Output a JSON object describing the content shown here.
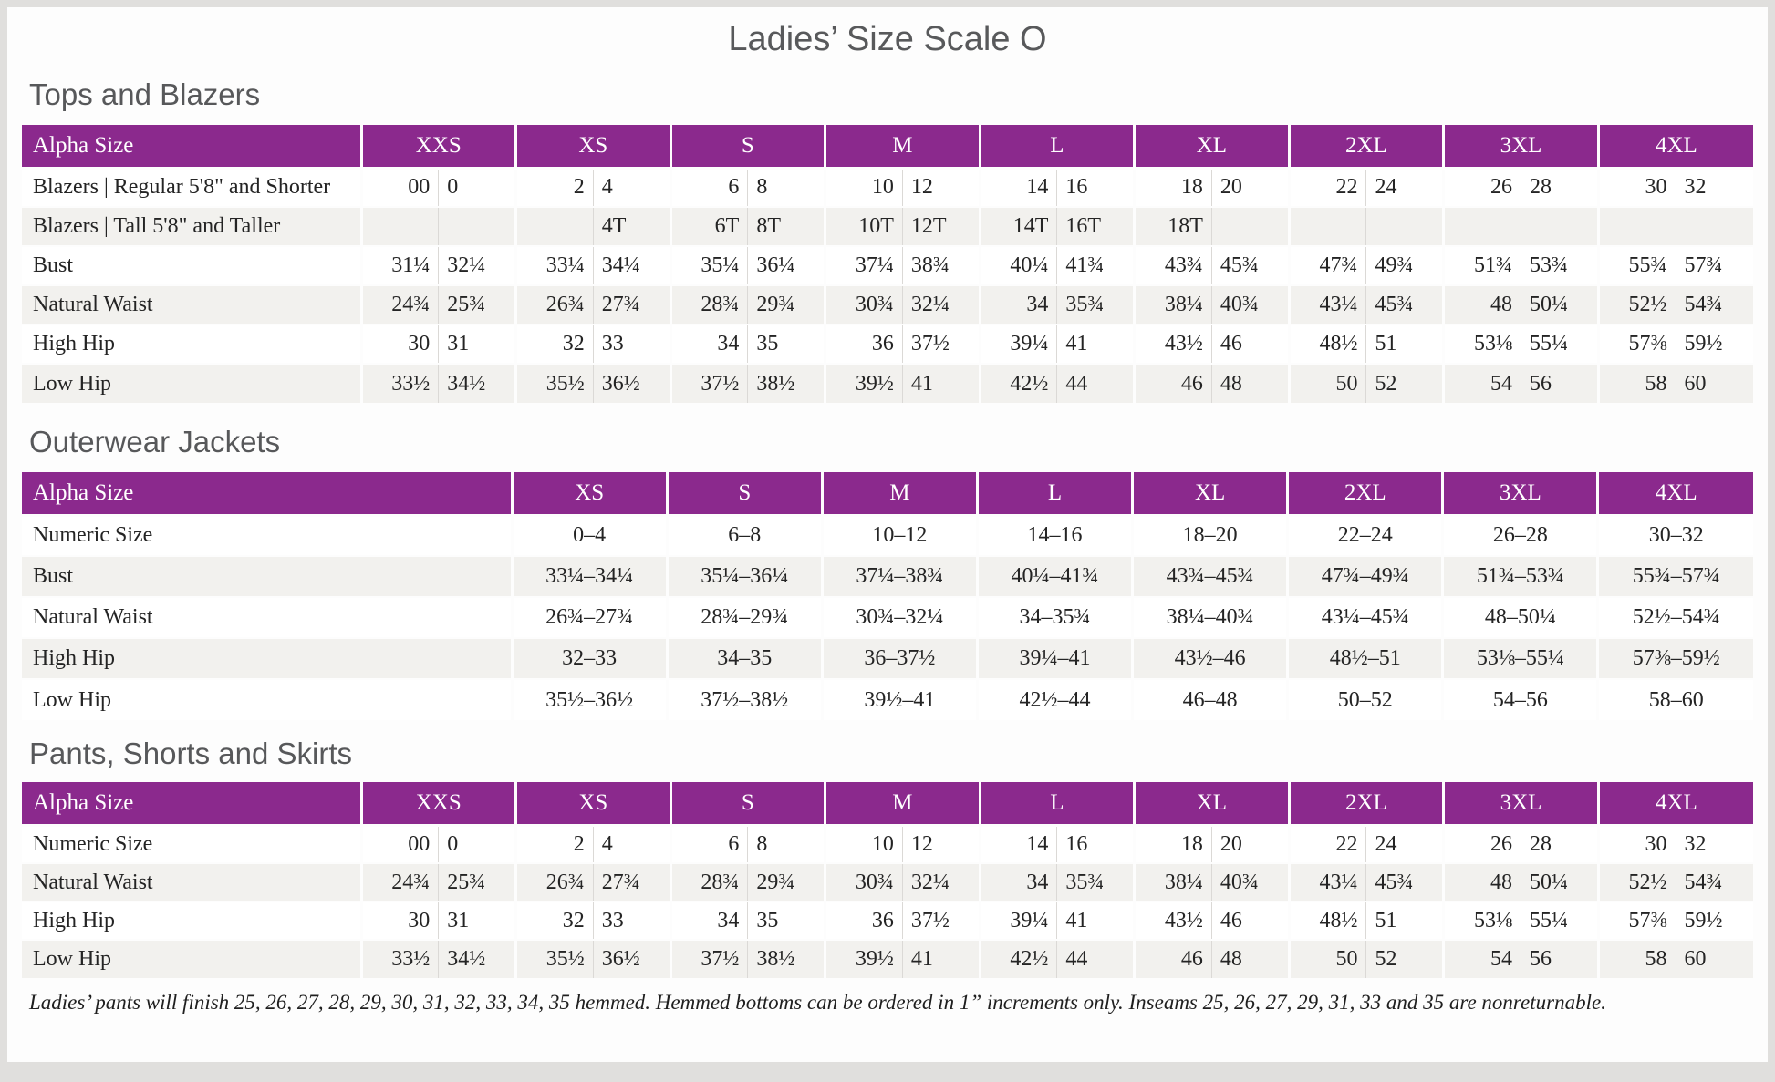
{
  "page": {
    "title": "Ladies’ Size Scale O",
    "footnote": "Ladies’ pants will finish 25, 26, 27, 28, 29, 30, 31, 32, 33, 34, 35 hemmed. Hemmed bottoms can be ordered in 1” increments only. Inseams 25, 26, 27, 29, 31, 33 and 35 are nonreturnable."
  },
  "colors": {
    "header_purple": "#8b298d",
    "alt_row_gray": "#f2f1ee",
    "heading_gray": "#58595b",
    "page_background": "#fdfdfd",
    "frame_gray": "#e0dfdd"
  },
  "tables": [
    {
      "id": "tops-and-blazers",
      "heading": "Tops and Blazers",
      "corner_label": "Alpha Size",
      "label_col_width": "19.6%",
      "subcols": 2,
      "groups": [
        "XXS",
        "XS",
        "S",
        "M",
        "L",
        "XL",
        "2XL",
        "3XL",
        "4XL"
      ],
      "rows": [
        {
          "label": "Blazers | Regular 5'8\" and Shorter",
          "cells": [
            "00",
            "0",
            "2",
            "4",
            "6",
            "8",
            "10",
            "12",
            "14",
            "16",
            "18",
            "20",
            "22",
            "24",
            "26",
            "28",
            "30",
            "32"
          ]
        },
        {
          "label": "Blazers | Tall 5'8\" and Taller",
          "cells": [
            "",
            "",
            "",
            "4T",
            "6T",
            "8T",
            "10T",
            "12T",
            "14T",
            "16T",
            "18T",
            "",
            "",
            "",
            "",
            "",
            "",
            ""
          ]
        },
        {
          "label": "Bust",
          "cells": [
            "31¼",
            "32¼",
            "33¼",
            "34¼",
            "35¼",
            "36¼",
            "37¼",
            "38¾",
            "40¼",
            "41¾",
            "43¾",
            "45¾",
            "47¾",
            "49¾",
            "51¾",
            "53¾",
            "55¾",
            "57¾"
          ]
        },
        {
          "label": "Natural Waist",
          "cells": [
            "24¾",
            "25¾",
            "26¾",
            "27¾",
            "28¾",
            "29¾",
            "30¾",
            "32¼",
            "34",
            "35¾",
            "38¼",
            "40¾",
            "43¼",
            "45¾",
            "48",
            "50¼",
            "52½",
            "54¾"
          ]
        },
        {
          "label": "High Hip",
          "cells": [
            "30",
            "31",
            "32",
            "33",
            "34",
            "35",
            "36",
            "37½",
            "39¼",
            "41",
            "43½",
            "46",
            "48½",
            "51",
            "53⅛",
            "55¼",
            "57⅜",
            "59½"
          ]
        },
        {
          "label": "Low Hip",
          "cells": [
            "33½",
            "34½",
            "35½",
            "36½",
            "37½",
            "38½",
            "39½",
            "41",
            "42½",
            "44",
            "46",
            "48",
            "50",
            "52",
            "54",
            "56",
            "58",
            "60"
          ]
        }
      ]
    },
    {
      "id": "outerwear-jackets",
      "heading": "Outerwear Jackets",
      "corner_label": "Alpha Size",
      "label_col_width": "28.3%",
      "subcols": 1,
      "groups": [
        "XS",
        "S",
        "M",
        "L",
        "XL",
        "2XL",
        "3XL",
        "4XL"
      ],
      "rows": [
        {
          "label": "Numeric Size",
          "cells": [
            "0–4",
            "6–8",
            "10–12",
            "14–16",
            "18–20",
            "22–24",
            "26–28",
            "30–32"
          ]
        },
        {
          "label": "Bust",
          "cells": [
            "33¼–34¼",
            "35¼–36¼",
            "37¼–38¾",
            "40¼–41¾",
            "43¾–45¾",
            "47¾–49¾",
            "51¾–53¾",
            "55¾–57¾"
          ]
        },
        {
          "label": "Natural Waist",
          "cells": [
            "26¾–27¾",
            "28¾–29¾",
            "30¾–32¼",
            "34–35¾",
            "38¼–40¾",
            "43¼–45¾",
            "48–50¼",
            "52½–54¾"
          ]
        },
        {
          "label": "High Hip",
          "cells": [
            "32–33",
            "34–35",
            "36–37½",
            "39¼–41",
            "43½–46",
            "48½–51",
            "53⅛–55¼",
            "57⅜–59½"
          ]
        },
        {
          "label": "Low Hip",
          "cells": [
            "35½–36½",
            "37½–38½",
            "39½–41",
            "42½–44",
            "46–48",
            "50–52",
            "54–56",
            "58–60"
          ]
        }
      ]
    },
    {
      "id": "pants-shorts-and-skirts",
      "heading": "Pants, Shorts and Skirts",
      "corner_label": "Alpha Size",
      "label_col_width": "19.6%",
      "subcols": 2,
      "groups": [
        "XXS",
        "XS",
        "S",
        "M",
        "L",
        "XL",
        "2XL",
        "3XL",
        "4XL"
      ],
      "rows": [
        {
          "label": "Numeric Size",
          "cells": [
            "00",
            "0",
            "2",
            "4",
            "6",
            "8",
            "10",
            "12",
            "14",
            "16",
            "18",
            "20",
            "22",
            "24",
            "26",
            "28",
            "30",
            "32"
          ]
        },
        {
          "label": "Natural Waist",
          "cells": [
            "24¾",
            "25¾",
            "26¾",
            "27¾",
            "28¾",
            "29¾",
            "30¾",
            "32¼",
            "34",
            "35¾",
            "38¼",
            "40¾",
            "43¼",
            "45¾",
            "48",
            "50¼",
            "52½",
            "54¾"
          ]
        },
        {
          "label": "High Hip",
          "cells": [
            "30",
            "31",
            "32",
            "33",
            "34",
            "35",
            "36",
            "37½",
            "39¼",
            "41",
            "43½",
            "46",
            "48½",
            "51",
            "53⅛",
            "55¼",
            "57⅜",
            "59½"
          ]
        },
        {
          "label": "Low Hip",
          "cells": [
            "33½",
            "34½",
            "35½",
            "36½",
            "37½",
            "38½",
            "39½",
            "41",
            "42½",
            "44",
            "46",
            "48",
            "50",
            "52",
            "54",
            "56",
            "58",
            "60"
          ]
        }
      ]
    }
  ]
}
